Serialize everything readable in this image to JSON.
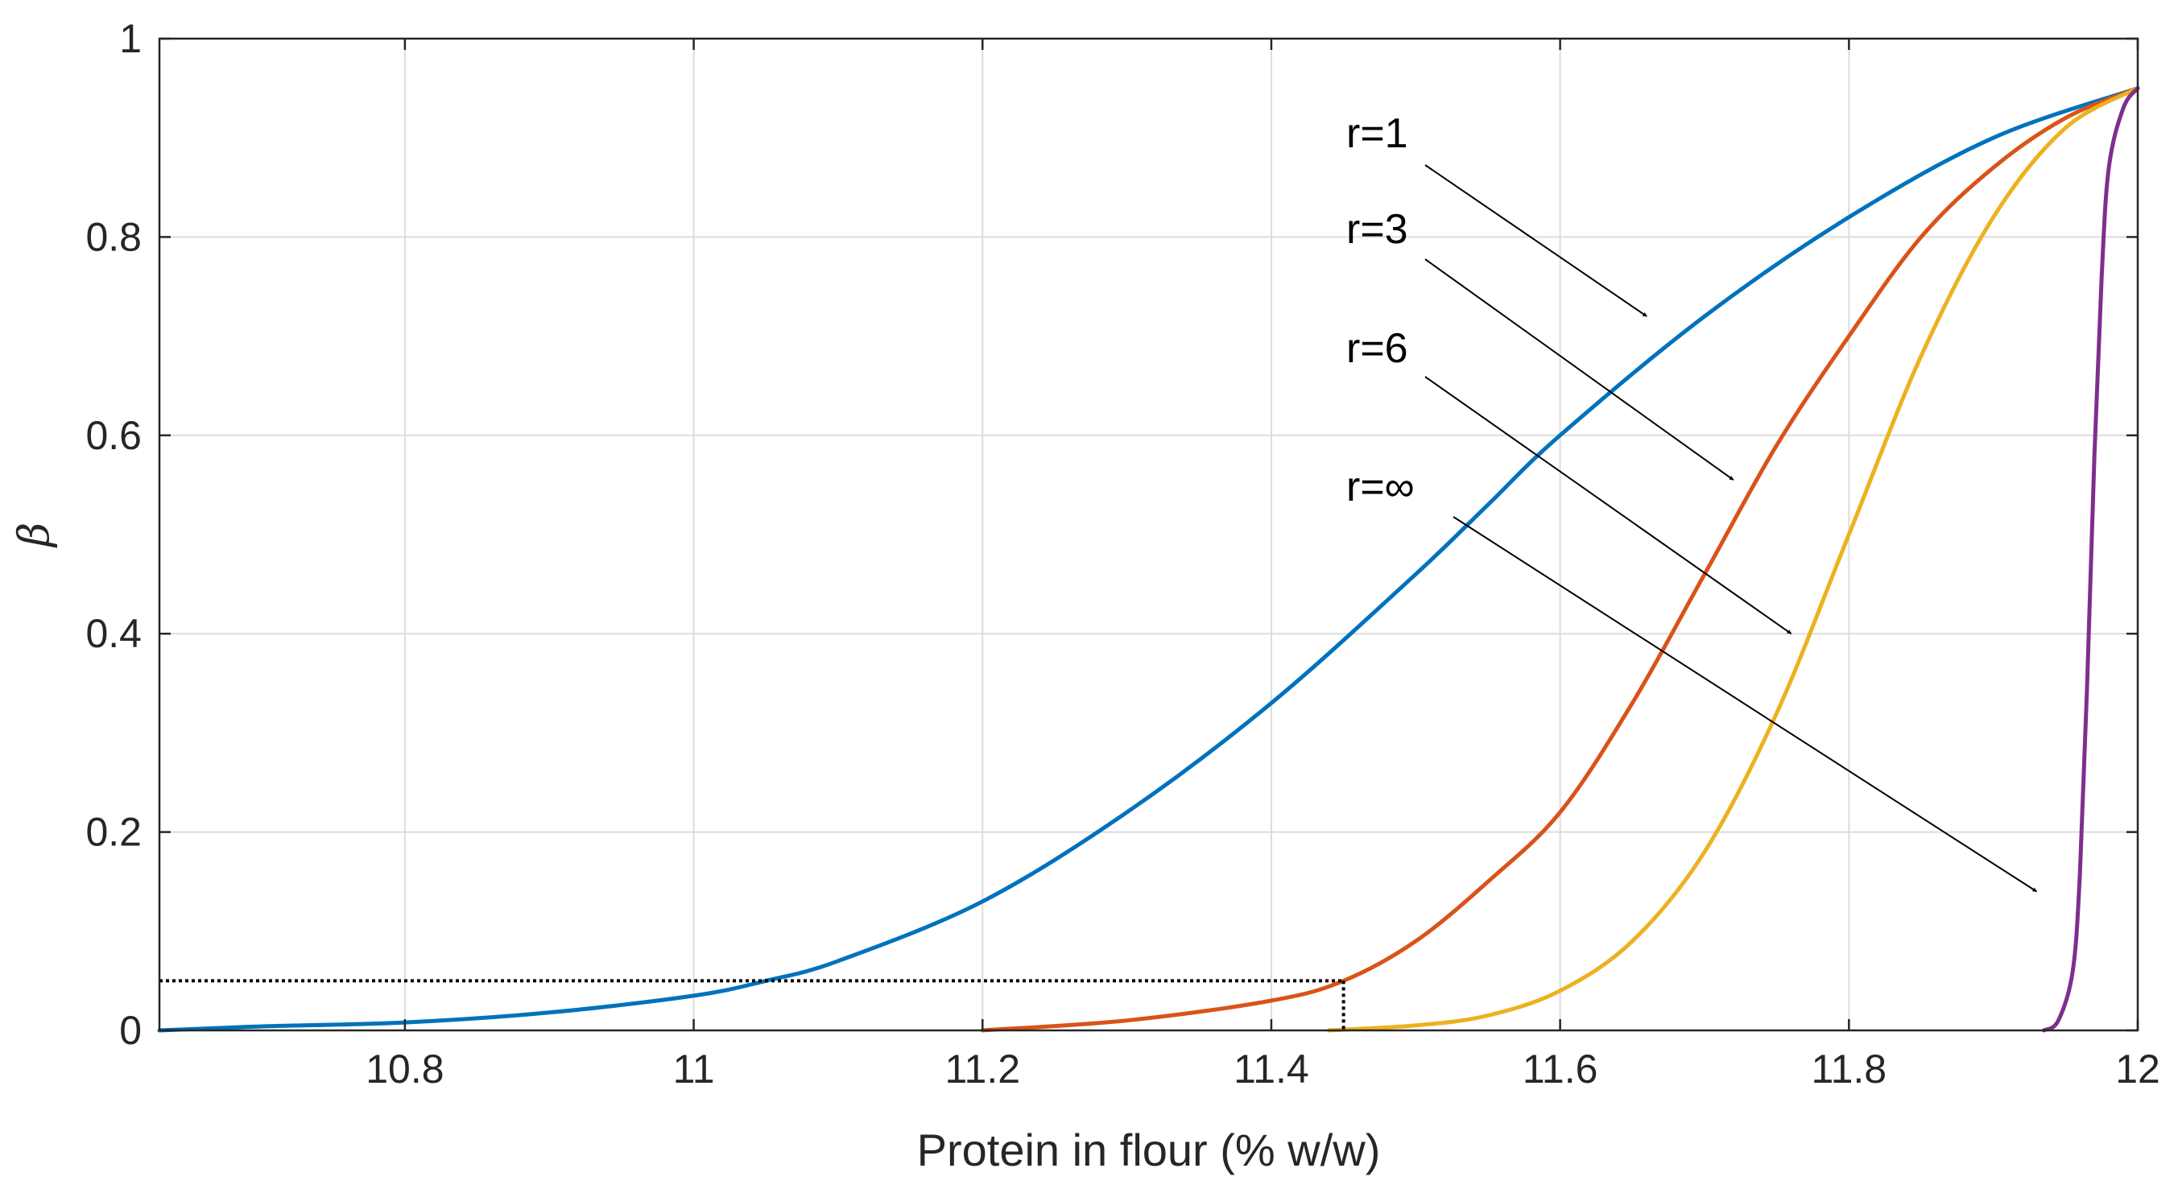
{
  "chart_data": {
    "type": "line",
    "title": "",
    "xlabel": "Protein in flour (% w/w)",
    "ylabel": "β",
    "xlim": [
      10.63,
      12.0
    ],
    "ylim": [
      0,
      1
    ],
    "grid": true,
    "xticks": [
      10.8,
      11,
      11.2,
      11.4,
      11.6,
      11.8,
      12
    ],
    "xtick_labels": [
      "10.8",
      "11",
      "11.2",
      "11.4",
      "11.6",
      "11.8",
      "12"
    ],
    "yticks": [
      0,
      0.2,
      0.4,
      0.6,
      0.8,
      1
    ],
    "ytick_labels": [
      "0",
      "0.2",
      "0.4",
      "0.6",
      "0.8",
      "1"
    ],
    "series": [
      {
        "name": "r=1",
        "color": "#0072BD",
        "x": [
          10.63,
          10.7,
          10.8,
          10.9,
          11.0,
          11.05,
          11.1,
          11.2,
          11.3,
          11.4,
          11.5,
          11.55,
          11.6,
          11.7,
          11.8,
          11.9,
          12.0
        ],
        "y": [
          0.0,
          0.004,
          0.008,
          0.018,
          0.035,
          0.05,
          0.07,
          0.13,
          0.22,
          0.33,
          0.46,
          0.53,
          0.6,
          0.72,
          0.82,
          0.9,
          0.95
        ]
      },
      {
        "name": "r=3",
        "color": "#D95319",
        "x": [
          11.2,
          11.3,
          11.4,
          11.45,
          11.5,
          11.55,
          11.6,
          11.65,
          11.7,
          11.75,
          11.8,
          11.85,
          11.9,
          11.95,
          12.0
        ],
        "y": [
          0.0,
          0.01,
          0.03,
          0.05,
          0.09,
          0.15,
          0.22,
          0.33,
          0.46,
          0.59,
          0.7,
          0.8,
          0.87,
          0.92,
          0.95
        ]
      },
      {
        "name": "r=6",
        "color": "#EDB120",
        "x": [
          11.44,
          11.5,
          11.55,
          11.6,
          11.65,
          11.7,
          11.75,
          11.8,
          11.85,
          11.9,
          11.95,
          12.0
        ],
        "y": [
          0.0,
          0.005,
          0.015,
          0.04,
          0.09,
          0.18,
          0.32,
          0.5,
          0.68,
          0.82,
          0.91,
          0.95
        ]
      },
      {
        "name": "r=∞",
        "color": "#7E2F8E",
        "x": [
          11.935,
          11.945,
          11.955,
          11.96,
          11.965,
          11.97,
          11.975,
          11.98,
          11.99,
          12.0
        ],
        "y": [
          0.0,
          0.01,
          0.06,
          0.16,
          0.35,
          0.58,
          0.76,
          0.87,
          0.93,
          0.95
        ]
      }
    ],
    "reference_point": {
      "x": 11.45,
      "y": 0.05,
      "style": "dotted"
    },
    "annotations": [
      {
        "text": "r=1",
        "arrow_to": [
          11.66,
          0.72
        ]
      },
      {
        "text": "r=3",
        "arrow_to": [
          11.72,
          0.555
        ]
      },
      {
        "text": "r=6",
        "arrow_to": [
          11.76,
          0.4
        ]
      },
      {
        "text": "r=∞",
        "arrow_to": [
          11.93,
          0.14
        ]
      }
    ]
  }
}
